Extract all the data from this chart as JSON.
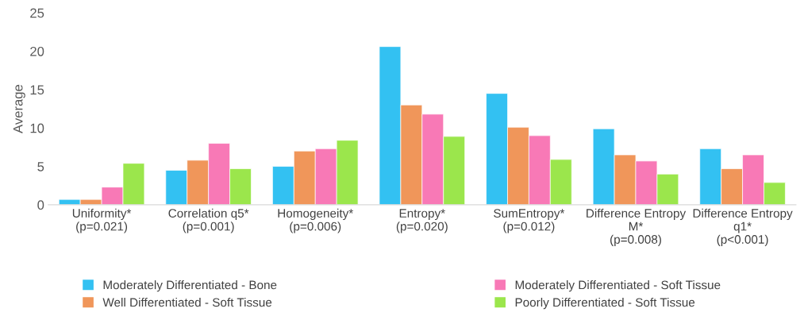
{
  "chart_data": {
    "type": "bar",
    "ylabel": "Average",
    "categories": [
      "Uniformity*\n(p=0.021)",
      "Correlation q5*\n(p=0.001)",
      "Homogeneity*\n(p=0.006)",
      "Entropy*\n(p=0.020)",
      "SumEntropy*\n(p=0.012)",
      "Difference Entropy\nM*\n(p=0.008)",
      "Difference Entropy\nq1*\n(p<0.001)"
    ],
    "series": [
      {
        "name": "Moderately Differentiated - Bone",
        "color": "#33c1f2",
        "values": [
          0.7,
          4.5,
          5.0,
          20.6,
          14.5,
          9.9,
          7.3
        ]
      },
      {
        "name": "Well Differentiated - Soft Tissue",
        "color": "#f0965a",
        "values": [
          0.7,
          5.8,
          7.0,
          13.0,
          10.1,
          6.5,
          4.7
        ]
      },
      {
        "name": "Moderately Differentiated - Soft Tissue",
        "color": "#f879b6",
        "values": [
          2.3,
          8.0,
          7.3,
          11.8,
          9.0,
          5.7,
          6.5
        ]
      },
      {
        "name": "Poorly Differentiated - Soft Tissue",
        "color": "#9be64c",
        "values": [
          5.4,
          4.7,
          8.4,
          8.9,
          5.9,
          4.0,
          2.9
        ]
      }
    ],
    "ylim": [
      0,
      25
    ],
    "yticks": [
      0,
      5,
      10,
      15,
      20,
      25
    ],
    "grid": false,
    "legend": "bottom"
  }
}
